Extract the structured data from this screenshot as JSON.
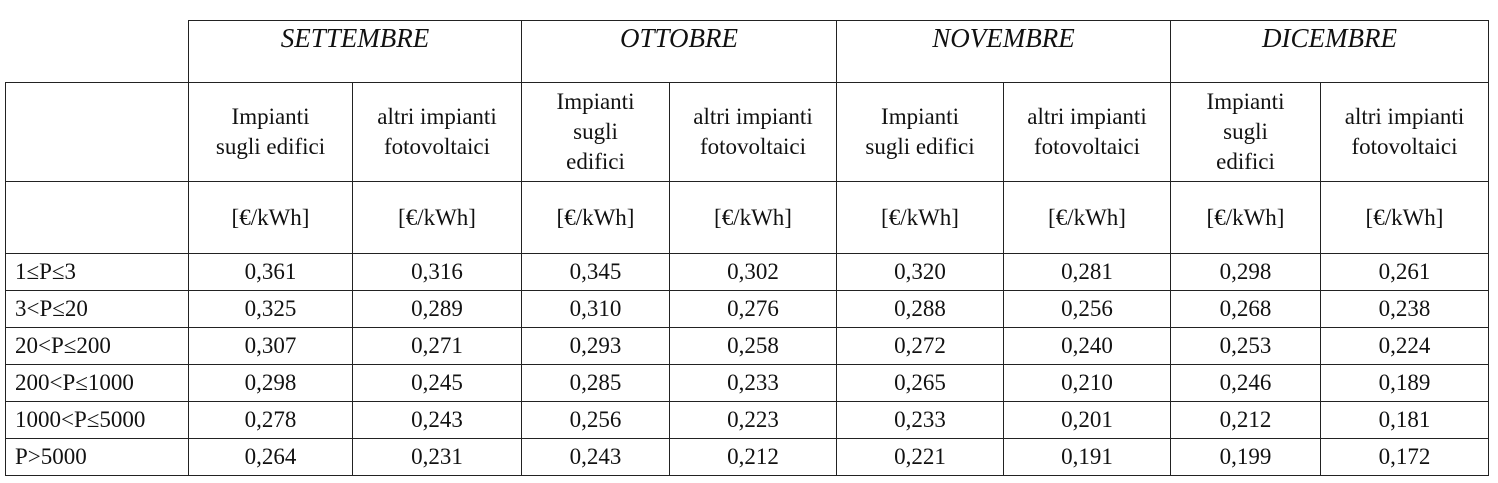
{
  "table": {
    "months": [
      "SETTEMBRE",
      "OTTOBRE",
      "NOVEMBRE",
      "DICEMBRE"
    ],
    "subheaders": [
      "Impianti\nsugli edifici",
      "altri impianti\nfotovoltaici",
      "Impianti\nsugli\nedifici",
      "altri impianti\nfotovoltaici",
      "Impianti\nsugli edifici",
      "altri impianti\nfotovoltaici",
      "Impianti\nsugli\nedifici",
      "altri impianti\nfotovoltaici"
    ],
    "units": [
      "[€/kWh]",
      "[€/kWh]",
      "[€/kWh]",
      "[€/kWh]",
      "[€/kWh]",
      "[€/kWh]",
      "[€/kWh]",
      "[€/kWh]"
    ],
    "rows": [
      {
        "label": "1≤P≤3",
        "values": [
          "0,361",
          "0,316",
          "0,345",
          "0,302",
          "0,320",
          "0,281",
          "0,298",
          "0,261"
        ]
      },
      {
        "label": "3<P≤20",
        "values": [
          "0,325",
          "0,289",
          "0,310",
          "0,276",
          "0,288",
          "0,256",
          "0,268",
          "0,238"
        ]
      },
      {
        "label": "20<P≤200",
        "values": [
          "0,307",
          "0,271",
          "0,293",
          "0,258",
          "0,272",
          "0,240",
          "0,253",
          "0,224"
        ]
      },
      {
        "label": "200<P≤1000",
        "values": [
          "0,298",
          "0,245",
          "0,285",
          "0,233",
          "0,265",
          "0,210",
          "0,246",
          "0,189"
        ]
      },
      {
        "label": "1000<P≤5000",
        "values": [
          "0,278",
          "0,243",
          "0,256",
          "0,223",
          "0,233",
          "0,201",
          "0,212",
          "0,181"
        ]
      },
      {
        "label": "P>5000",
        "values": [
          "0,264",
          "0,231",
          "0,243",
          "0,212",
          "0,221",
          "0,191",
          "0,199",
          "0,172"
        ]
      }
    ]
  }
}
